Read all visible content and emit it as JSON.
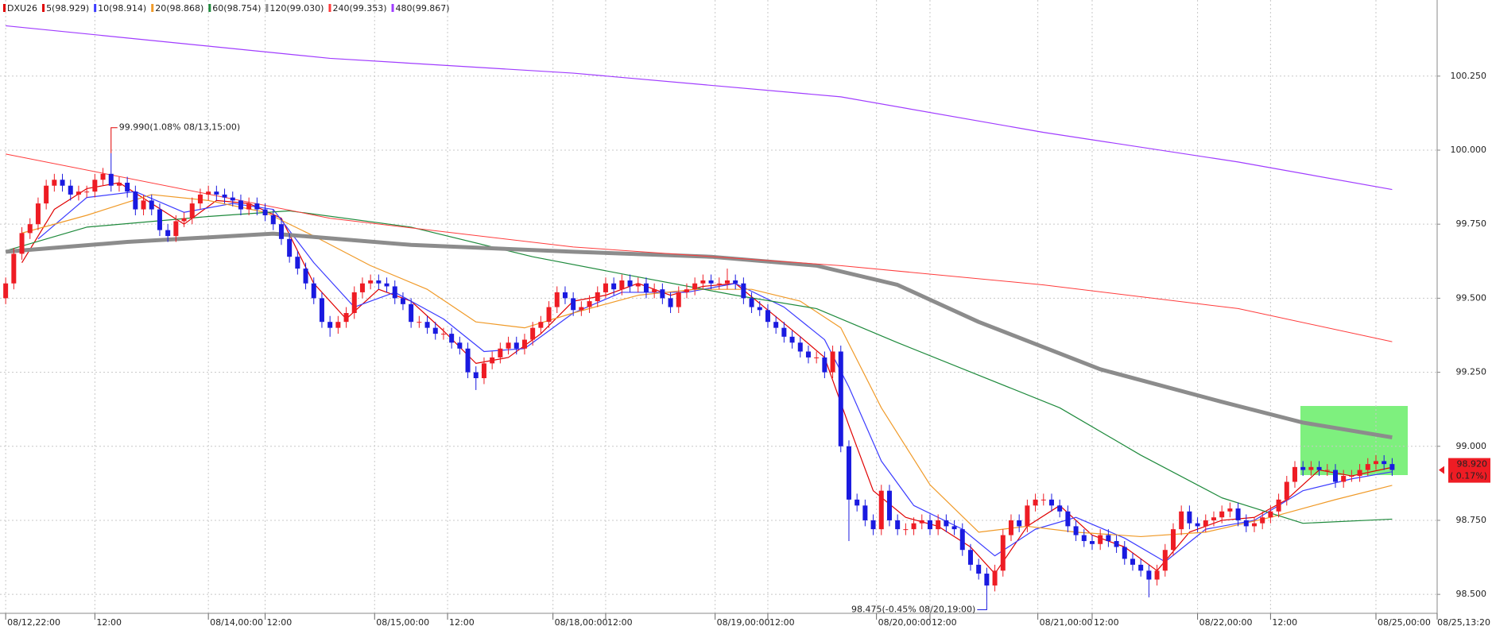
{
  "chart_data": {
    "type": "candlestick",
    "symbol": "DXU26",
    "symbol_color": "#e00000",
    "up_color": "#ee1c24",
    "down_color": "#1a1ae0",
    "grid": true,
    "xlim": [
      -0.7,
      176.55
    ],
    "ylim": [
      98.436,
      100.507
    ],
    "yticks": [
      {
        "value": 98.5,
        "label": "98.500"
      },
      {
        "value": 98.75,
        "label": "98.750"
      },
      {
        "value": 99.0,
        "label": "99.000"
      },
      {
        "value": 99.25,
        "label": "99.250"
      },
      {
        "value": 99.5,
        "label": "99.500"
      },
      {
        "value": 99.75,
        "label": "99.750"
      },
      {
        "value": 100.0,
        "label": "100.000"
      },
      {
        "value": 100.25,
        "label": "100.250"
      }
    ],
    "xticks": [
      {
        "value": 0,
        "label": "08/12,22:00"
      },
      {
        "value": 11,
        "label": "12:00"
      },
      {
        "value": 25,
        "label": "08/14,00:00"
      },
      {
        "value": 32,
        "label": "12:00"
      },
      {
        "value": 45.5,
        "label": "08/15,00:00"
      },
      {
        "value": 54.5,
        "label": "12:00"
      },
      {
        "value": 67.5,
        "label": "08/18,00:00"
      },
      {
        "value": 74,
        "label": "12:00"
      },
      {
        "value": 87.5,
        "label": "08/19,00:00"
      },
      {
        "value": 94,
        "label": "12:00"
      },
      {
        "value": 107.4,
        "label": "08/20,00:00"
      },
      {
        "value": 114,
        "label": "12:00"
      },
      {
        "value": 127.3,
        "label": "08/21,00:00"
      },
      {
        "value": 134,
        "label": "12:00"
      },
      {
        "value": 147,
        "label": "08/22,00:00"
      },
      {
        "value": 156,
        "label": "12:00"
      },
      {
        "value": 169,
        "label": "08/25,00:00"
      },
      {
        "value": 176.55,
        "label": "08/25,13:20"
      }
    ],
    "candles": {
      "open": [
        99.5,
        99.55,
        99.65,
        99.72,
        99.75,
        99.82,
        99.88,
        99.9,
        99.88,
        99.85,
        99.86,
        99.86,
        99.9,
        99.92,
        99.88,
        99.89,
        99.86,
        99.8,
        99.83,
        99.8,
        99.73,
        99.71,
        99.76,
        99.77,
        99.82,
        99.85,
        99.86,
        99.85,
        99.84,
        99.83,
        99.8,
        99.82,
        99.8,
        99.78,
        99.75,
        99.7,
        99.64,
        99.6,
        99.55,
        99.5,
        99.42,
        99.4,
        99.42,
        99.45,
        99.52,
        99.55,
        99.56,
        99.55,
        99.54,
        99.5,
        99.48,
        99.42,
        99.42,
        99.4,
        99.38,
        99.38,
        99.35,
        99.33,
        99.25,
        99.23,
        99.28,
        99.3,
        99.33,
        99.35,
        99.33,
        99.36,
        99.4,
        99.42,
        99.47,
        99.52,
        99.5,
        99.46,
        99.47,
        99.49,
        99.52,
        99.55,
        99.53,
        99.56,
        99.54,
        99.55,
        99.52,
        99.53,
        99.5,
        99.47,
        99.52,
        99.53,
        99.55,
        99.56,
        99.55,
        99.55,
        99.56,
        99.55,
        99.5,
        99.47,
        99.46,
        99.42,
        99.4,
        99.37,
        99.35,
        99.32,
        99.3,
        99.3,
        99.25,
        99.32,
        99.0,
        98.82,
        98.8,
        98.75,
        98.72,
        98.85,
        98.75,
        98.72,
        98.72,
        98.74,
        98.75,
        98.72,
        98.75,
        98.73,
        98.72,
        98.65,
        98.6,
        98.57,
        98.53,
        98.58,
        98.7,
        98.75,
        98.73,
        98.8,
        98.82,
        98.82,
        98.8,
        98.78,
        98.73,
        98.7,
        98.68,
        98.67,
        98.7,
        98.68,
        98.66,
        98.62,
        98.6,
        98.58,
        98.55,
        98.58,
        98.65,
        98.72,
        98.78,
        98.74,
        98.73,
        98.75,
        98.76,
        98.78,
        98.79,
        98.75,
        98.73,
        98.74,
        98.76,
        98.78,
        98.82,
        98.88,
        98.93,
        98.92,
        98.93,
        98.92,
        98.92,
        98.88,
        98.9,
        98.9,
        98.92,
        98.94,
        98.95,
        98.94
      ],
      "high": [
        99.57,
        99.67,
        99.74,
        99.77,
        99.84,
        99.9,
        99.92,
        99.92,
        99.9,
        99.88,
        99.88,
        99.92,
        99.94,
        99.99,
        99.91,
        99.91,
        99.88,
        99.85,
        99.85,
        99.82,
        99.75,
        99.78,
        99.79,
        99.84,
        99.87,
        99.88,
        99.88,
        99.87,
        99.86,
        99.85,
        99.84,
        99.84,
        99.82,
        99.8,
        99.77,
        99.72,
        99.66,
        99.62,
        99.57,
        99.52,
        99.44,
        99.44,
        99.47,
        99.54,
        99.57,
        99.58,
        99.58,
        99.57,
        99.56,
        99.52,
        99.5,
        99.44,
        99.44,
        99.42,
        99.4,
        99.4,
        99.37,
        99.35,
        99.27,
        99.3,
        99.32,
        99.35,
        99.37,
        99.37,
        99.38,
        99.42,
        99.44,
        99.49,
        99.54,
        99.54,
        99.52,
        99.49,
        99.51,
        99.54,
        99.57,
        99.57,
        99.58,
        99.58,
        99.57,
        99.57,
        99.55,
        99.55,
        99.52,
        99.54,
        99.55,
        99.57,
        99.58,
        99.58,
        99.57,
        99.6,
        99.58,
        99.57,
        99.52,
        99.49,
        99.48,
        99.44,
        99.42,
        99.39,
        99.37,
        99.34,
        99.32,
        99.32,
        99.34,
        99.34,
        99.02,
        98.84,
        98.82,
        98.77,
        98.87,
        98.87,
        98.77,
        98.74,
        98.76,
        98.77,
        98.77,
        98.77,
        98.77,
        98.75,
        98.74,
        98.67,
        98.62,
        98.59,
        98.6,
        98.72,
        98.77,
        98.77,
        98.82,
        98.84,
        98.84,
        98.84,
        98.82,
        98.8,
        98.75,
        98.72,
        98.7,
        98.72,
        98.72,
        98.7,
        98.68,
        98.64,
        98.62,
        98.6,
        98.6,
        98.67,
        98.74,
        98.8,
        98.8,
        98.76,
        98.77,
        98.78,
        98.8,
        98.81,
        98.81,
        98.77,
        98.76,
        98.78,
        98.8,
        98.84,
        98.9,
        98.95,
        98.95,
        98.95,
        98.95,
        98.94,
        98.94,
        98.92,
        98.92,
        98.94,
        98.96,
        98.97,
        98.97,
        98.96
      ],
      "low": [
        99.48,
        99.53,
        99.63,
        99.7,
        99.73,
        99.8,
        99.86,
        99.86,
        99.83,
        99.83,
        99.84,
        99.84,
        99.88,
        99.86,
        99.86,
        99.84,
        99.78,
        99.78,
        99.78,
        99.71,
        99.69,
        99.69,
        99.74,
        99.75,
        99.8,
        99.83,
        99.83,
        99.82,
        99.81,
        99.78,
        99.78,
        99.78,
        99.76,
        99.73,
        99.68,
        99.62,
        99.58,
        99.53,
        99.48,
        99.4,
        99.37,
        99.38,
        99.4,
        99.43,
        99.5,
        99.53,
        99.53,
        99.52,
        99.48,
        99.46,
        99.4,
        99.4,
        99.38,
        99.36,
        99.36,
        99.33,
        99.31,
        99.23,
        99.19,
        99.21,
        99.26,
        99.28,
        99.31,
        99.31,
        99.31,
        99.34,
        99.38,
        99.4,
        99.45,
        99.48,
        99.44,
        99.44,
        99.45,
        99.47,
        99.5,
        99.51,
        99.51,
        99.52,
        99.52,
        99.5,
        99.5,
        99.48,
        99.45,
        99.45,
        99.5,
        99.51,
        99.53,
        99.53,
        99.53,
        99.53,
        99.53,
        99.48,
        99.45,
        99.44,
        99.4,
        99.38,
        99.35,
        99.33,
        99.3,
        99.28,
        99.28,
        99.23,
        99.23,
        98.98,
        98.68,
        98.78,
        98.73,
        98.7,
        98.7,
        98.73,
        98.7,
        98.7,
        98.7,
        98.72,
        98.7,
        98.7,
        98.71,
        98.7,
        98.63,
        98.58,
        98.55,
        98.475,
        98.51,
        98.56,
        98.68,
        98.71,
        98.71,
        98.78,
        98.8,
        98.78,
        98.76,
        98.71,
        98.68,
        98.66,
        98.65,
        98.65,
        98.66,
        98.64,
        98.6,
        98.58,
        98.56,
        98.49,
        98.53,
        98.56,
        98.63,
        98.7,
        98.72,
        98.71,
        98.71,
        98.73,
        98.74,
        98.76,
        98.73,
        98.71,
        98.71,
        98.72,
        98.74,
        98.76,
        98.8,
        98.86,
        98.9,
        98.9,
        98.9,
        98.9,
        98.86,
        98.86,
        98.88,
        98.88,
        98.9,
        98.92,
        98.92,
        98.9
      ],
      "close": [
        99.55,
        99.65,
        99.72,
        99.75,
        99.82,
        99.88,
        99.9,
        99.88,
        99.85,
        99.86,
        99.86,
        99.9,
        99.92,
        99.88,
        99.89,
        99.86,
        99.8,
        99.83,
        99.8,
        99.73,
        99.71,
        99.76,
        99.77,
        99.82,
        99.85,
        99.86,
        99.85,
        99.84,
        99.83,
        99.8,
        99.82,
        99.8,
        99.78,
        99.75,
        99.7,
        99.64,
        99.6,
        99.55,
        99.5,
        99.42,
        99.4,
        99.42,
        99.45,
        99.52,
        99.55,
        99.56,
        99.55,
        99.54,
        99.5,
        99.48,
        99.42,
        99.42,
        99.4,
        99.38,
        99.38,
        99.35,
        99.33,
        99.25,
        99.23,
        99.28,
        99.3,
        99.33,
        99.35,
        99.33,
        99.36,
        99.4,
        99.42,
        99.47,
        99.52,
        99.5,
        99.46,
        99.47,
        99.49,
        99.52,
        99.55,
        99.53,
        99.56,
        99.54,
        99.55,
        99.52,
        99.53,
        99.5,
        99.47,
        99.52,
        99.53,
        99.55,
        99.56,
        99.55,
        99.55,
        99.56,
        99.55,
        99.5,
        99.47,
        99.46,
        99.42,
        99.4,
        99.37,
        99.35,
        99.32,
        99.3,
        99.3,
        99.25,
        99.32,
        99.0,
        98.82,
        98.8,
        98.75,
        98.72,
        98.85,
        98.75,
        98.72,
        98.72,
        98.74,
        98.75,
        98.72,
        98.75,
        98.73,
        98.72,
        98.65,
        98.6,
        98.57,
        98.53,
        98.58,
        98.7,
        98.75,
        98.73,
        98.8,
        98.82,
        98.82,
        98.8,
        98.78,
        98.73,
        98.7,
        98.68,
        98.67,
        98.7,
        98.68,
        98.66,
        98.62,
        98.6,
        98.58,
        98.55,
        98.58,
        98.65,
        98.72,
        98.78,
        98.74,
        98.73,
        98.75,
        98.76,
        98.78,
        98.79,
        98.75,
        98.73,
        98.74,
        98.76,
        98.78,
        98.82,
        98.88,
        98.93,
        98.92,
        98.93,
        98.92,
        98.92,
        98.88,
        98.9,
        98.9,
        98.92,
        98.94,
        98.95,
        98.94,
        98.92
      ]
    },
    "series": [
      {
        "name": "5(98.929)",
        "color": "#e00000",
        "width": 1.2,
        "x": [
          2,
          6,
          10,
          14,
          18,
          22,
          26,
          30,
          34,
          38,
          42,
          46,
          50,
          54,
          58,
          62,
          66,
          70,
          74,
          78,
          82,
          86,
          90,
          94,
          98,
          101,
          104,
          107,
          111,
          115,
          119,
          122,
          126,
          130,
          134,
          138,
          142,
          146,
          150,
          154,
          158,
          162,
          166,
          171
        ],
        "values": [
          99.62,
          99.8,
          99.87,
          99.89,
          99.82,
          99.75,
          99.83,
          99.82,
          99.77,
          99.55,
          99.43,
          99.53,
          99.49,
          99.39,
          99.28,
          99.3,
          99.38,
          99.49,
          99.51,
          99.55,
          99.51,
          99.54,
          99.55,
          99.46,
          99.37,
          99.3,
          99.07,
          98.85,
          98.76,
          98.73,
          98.66,
          98.57,
          98.73,
          98.8,
          98.7,
          98.66,
          98.58,
          98.71,
          98.75,
          98.76,
          98.82,
          98.92,
          98.9,
          98.929
        ]
      },
      {
        "name": "10(98.914)",
        "color": "#3c3cff",
        "width": 1.2,
        "x": [
          4,
          10,
          16,
          22,
          28,
          33,
          38,
          43,
          48,
          54,
          59,
          64,
          70,
          76,
          84,
          90,
          96,
          101,
          104,
          108,
          112,
          118,
          122,
          127,
          132,
          138,
          143,
          148,
          154,
          160,
          166,
          171
        ],
        "values": [
          99.7,
          99.84,
          99.86,
          99.79,
          99.82,
          99.8,
          99.62,
          99.47,
          99.52,
          99.43,
          99.32,
          99.33,
          99.45,
          99.52,
          99.52,
          99.55,
          99.47,
          99.36,
          99.2,
          98.95,
          98.8,
          98.72,
          98.63,
          98.72,
          98.76,
          98.69,
          98.61,
          98.72,
          98.75,
          98.85,
          98.89,
          98.914
        ]
      },
      {
        "name": "20(98.868)",
        "color": "#f09a28",
        "width": 1.2,
        "x": [
          2,
          10,
          18,
          25,
          32,
          38,
          45,
          52,
          58,
          64,
          70,
          78,
          85,
          92,
          98,
          103,
          108,
          114,
          120,
          126,
          132,
          140,
          148,
          156,
          164,
          171
        ],
        "values": [
          99.72,
          99.78,
          99.85,
          99.83,
          99.79,
          99.71,
          99.61,
          99.53,
          99.42,
          99.4,
          99.45,
          99.51,
          99.53,
          99.53,
          99.49,
          99.4,
          99.13,
          98.87,
          98.71,
          98.73,
          98.71,
          98.695,
          98.71,
          98.76,
          98.82,
          98.868
        ]
      },
      {
        "name": "60(98.754)",
        "color": "#1e8a3c",
        "width": 1.2,
        "x": [
          0,
          10,
          25,
          35,
          50,
          65,
          77,
          90,
          100,
          110,
          120,
          130,
          140,
          150,
          160,
          171
        ],
        "values": [
          99.66,
          99.74,
          99.776,
          99.795,
          99.74,
          99.64,
          99.577,
          99.51,
          99.465,
          99.35,
          99.24,
          99.13,
          98.97,
          98.826,
          98.74,
          98.754
        ]
      },
      {
        "name": "120(99.030)",
        "color": "#8c8c8c",
        "width": 5,
        "x": [
          0,
          15,
          33,
          50,
          70,
          87,
          100,
          110,
          120,
          135,
          150,
          160,
          171
        ],
        "values": [
          99.657,
          99.69,
          99.718,
          99.68,
          99.657,
          99.64,
          99.61,
          99.545,
          99.42,
          99.26,
          99.15,
          99.08,
          99.03
        ]
      },
      {
        "name": "240(99.353)",
        "color": "#ff3c3c",
        "width": 1,
        "x": [
          0,
          40,
          70,
          103,
          128,
          152,
          171
        ],
        "values": [
          99.987,
          99.77,
          99.673,
          99.61,
          99.545,
          99.465,
          99.353
        ]
      },
      {
        "name": "480(99.867)",
        "color": "#a03cff",
        "width": 1.2,
        "x": [
          0,
          40,
          70,
          103,
          128,
          152,
          171
        ],
        "values": [
          100.42,
          100.31,
          100.26,
          100.18,
          100.06,
          99.96,
          99.867
        ]
      }
    ],
    "annotations": [
      {
        "text": "99.990(1.08% 08/13,15:00)",
        "x": 13,
        "value": 99.99,
        "color": "#e00000"
      },
      {
        "text": "98.475(-0.45% 08/20,19:00)",
        "x": 121,
        "value": 98.475,
        "color": "#1a1ae0"
      }
    ],
    "current": {
      "value": 98.92,
      "label": "98.920",
      "change": "( 0.17%)",
      "color": "#ee1c24"
    }
  }
}
